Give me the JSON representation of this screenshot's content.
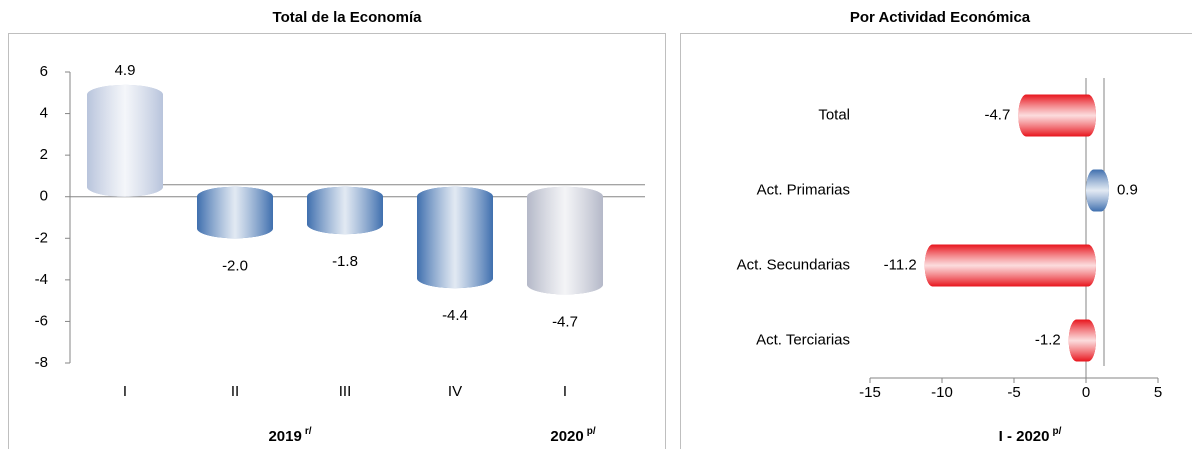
{
  "charts": [
    {
      "chart_data": {
        "type": "bar",
        "title": "Total de la Economía",
        "categories": [
          "I",
          "II",
          "III",
          "IV",
          "I"
        ],
        "values": [
          4.9,
          -2.0,
          -1.8,
          -4.4,
          -4.7
        ],
        "value_labels": [
          "4.9",
          "-2.0",
          "-1.8",
          "-4.4",
          "-4.7"
        ],
        "colors": [
          "#b8c4dc",
          "#3f6fae",
          "#3f6fae",
          "#3f6fae",
          "#b4b8c8"
        ],
        "ylim": [
          -8,
          6
        ],
        "yticks": [
          -8,
          -6,
          -4,
          -2,
          0,
          2,
          4,
          6
        ],
        "groups": [
          {
            "text": "2019",
            "superscript": "r/"
          },
          {
            "text": "2020",
            "superscript": "p/"
          }
        ]
      }
    },
    {
      "chart_data": {
        "type": "hbar",
        "title": "Por Actividad Económica",
        "categories": [
          "Total",
          "Act. Primarias",
          "Act. Secundarias",
          "Act. Terciarias"
        ],
        "values": [
          -4.7,
          0.9,
          -11.2,
          -1.2
        ],
        "value_labels": [
          "-4.7",
          "0.9",
          "-11.2",
          "-1.2"
        ],
        "colors": [
          "#e8141c",
          "#3f6fae",
          "#e8141c",
          "#e8141c"
        ],
        "xlim": [
          -15,
          5
        ],
        "xticks": [
          -15,
          -10,
          -5,
          0,
          5
        ],
        "xlabel": {
          "text": "I - 2020",
          "superscript": "p/"
        }
      }
    }
  ]
}
